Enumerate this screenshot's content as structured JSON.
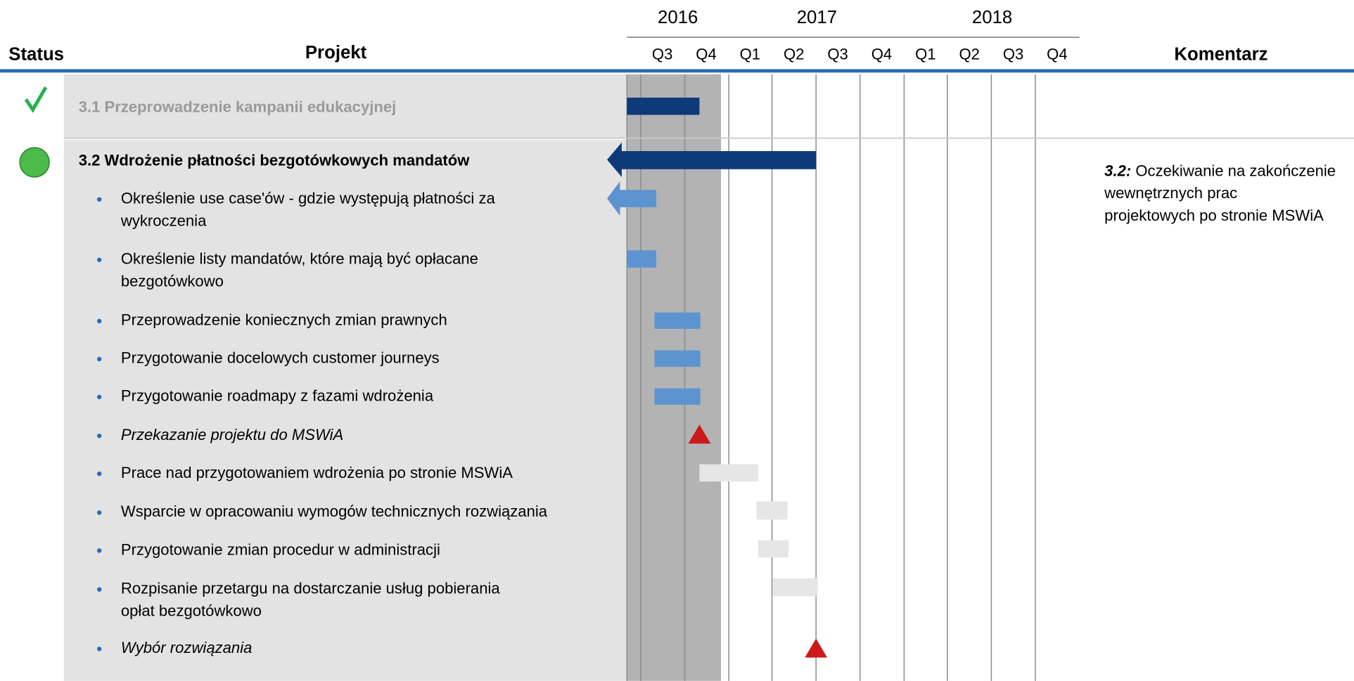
{
  "header": {
    "status": "Status",
    "project": "Projekt",
    "comment": "Komentarz",
    "years": [
      "2016",
      "2017",
      "2018"
    ],
    "quarters": [
      "Q3",
      "Q4",
      "Q1",
      "Q2",
      "Q3",
      "Q4",
      "Q1",
      "Q2",
      "Q3",
      "Q4"
    ]
  },
  "rows": [
    {
      "title": "3.1 Przeprowadzenie kampanii edukacyjnej"
    },
    {
      "title": "3.2 Wdrożenie płatności bezgotówkowych mandatów",
      "tasks": [
        [
          "Określenie use case'ów - gdzie występują płatności za",
          "wykroczenia"
        ],
        [
          "Określenie listy mandatów, które mają być opłacane",
          "bezgotówkowo"
        ],
        [
          "Przeprowadzenie koniecznych zmian prawnych"
        ],
        [
          "Przygotowanie docelowych customer journeys"
        ],
        [
          "Przygotowanie roadmapy z fazami wdrożenia"
        ],
        [
          "Przekazanie projektu do MSWiA"
        ],
        [
          "Prace nad przygotowaniem wdrożenia po stronie MSWiA"
        ],
        [
          "Wsparcie w opracowaniu wymogów technicznych rozwiązania"
        ],
        [
          "Przygotowanie zmian procedur w administracji"
        ],
        [
          "Rozpisanie przetargu na dostarczanie usług pobierania",
          "opłat bezgotówkowo"
        ],
        [
          "Wybór rozwiązania"
        ]
      ],
      "comment": {
        "label": "3.2:",
        "lines": [
          " Oczekiwanie na zakończenie",
          "wewnętrznych prac",
          "projektowych po stronie MSWiA"
        ]
      }
    }
  ]
}
